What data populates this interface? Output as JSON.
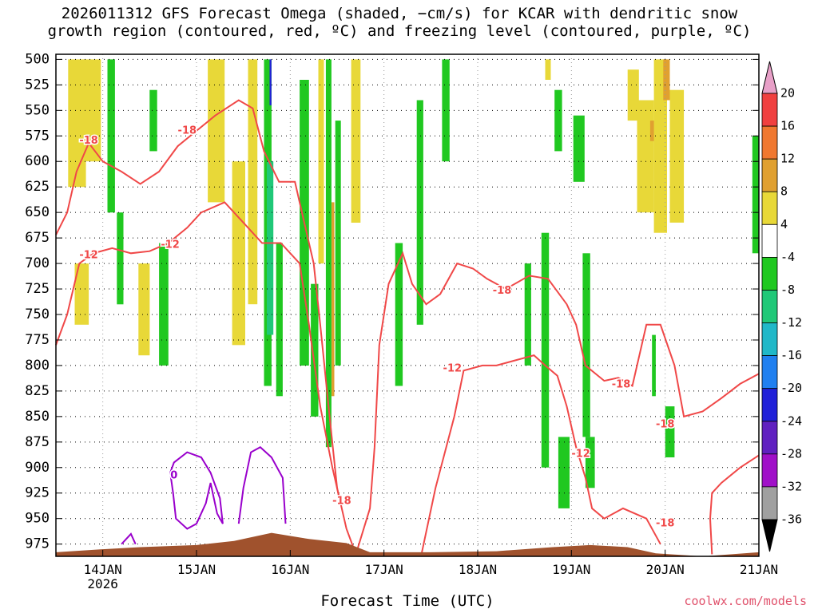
{
  "title": {
    "line1": "2026011312 GFS Forecast Omega (shaded, −cm/s) for KCAR with dendritic snow",
    "line2": "growth region (contoured, red, ºC) and freezing level (contoured, purple, ºC)"
  },
  "credit": "coolwx.com/models",
  "colors": {
    "dendritic_contour": "#f04848",
    "freezing_contour": "#9900cc",
    "terrain": "#a0522d",
    "grid": "#000000"
  },
  "chart_data": {
    "type": "heatmap",
    "xlabel": "Forecast Time (UTC)",
    "ylabel": "",
    "x_ticks": [
      {
        "label": "14JAN",
        "sub": "2026"
      },
      {
        "label": "15JAN",
        "sub": ""
      },
      {
        "label": "16JAN",
        "sub": ""
      },
      {
        "label": "17JAN",
        "sub": ""
      },
      {
        "label": "18JAN",
        "sub": ""
      },
      {
        "label": "19JAN",
        "sub": ""
      },
      {
        "label": "20JAN",
        "sub": ""
      },
      {
        "label": "21JAN",
        "sub": ""
      }
    ],
    "xlim_days": [
      13.5,
      21.0
    ],
    "y_axis": {
      "ticks": [
        500,
        525,
        550,
        575,
        600,
        625,
        650,
        675,
        700,
        725,
        750,
        775,
        800,
        825,
        850,
        875,
        900,
        925,
        950,
        975
      ],
      "range_hPa": [
        495,
        987
      ],
      "inverted": true
    },
    "colorbar": {
      "levels": [
        20,
        16,
        12,
        8,
        4,
        -4,
        -8,
        -12,
        -16,
        -20,
        -24,
        -28,
        -32,
        -36
      ],
      "colors": [
        "#e8a0c8",
        "#f04040",
        "#f07830",
        "#e0a030",
        "#e8d838",
        "#ffffff",
        "#20c820",
        "#20c878",
        "#20b8c8",
        "#2080f0",
        "#2020d8",
        "#6020c0",
        "#a010c8",
        "#a0a0a0",
        "#000000"
      ],
      "extend": "both"
    },
    "contour_labels": [
      {
        "text": "-18",
        "x_day": 13.85,
        "p": 580
      },
      {
        "text": "-18",
        "x_day": 14.9,
        "p": 570
      },
      {
        "text": "-12",
        "x_day": 13.85,
        "p": 692
      },
      {
        "text": "-12",
        "x_day": 14.72,
        "p": 682
      },
      {
        "text": "-18",
        "x_day": 16.55,
        "p": 933
      },
      {
        "text": "-12",
        "x_day": 17.73,
        "p": 803
      },
      {
        "text": "-18",
        "x_day": 18.26,
        "p": 727
      },
      {
        "text": "-12",
        "x_day": 19.1,
        "p": 887
      },
      {
        "text": "-18",
        "x_day": 19.53,
        "p": 819
      },
      {
        "text": "-18",
        "x_day": 20.0,
        "p": 858
      },
      {
        "text": "-18",
        "x_day": 20.0,
        "p": 955
      },
      {
        "text": "0",
        "x_day": 14.76,
        "p": 908
      }
    ],
    "grid": true,
    "legend": "right colorbar"
  }
}
